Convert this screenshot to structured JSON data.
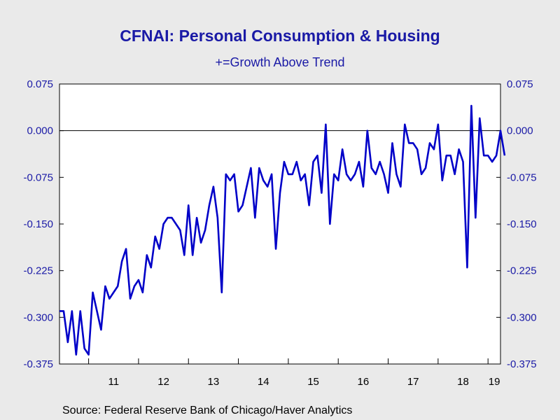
{
  "chart_data": {
    "type": "line",
    "title": "CFNAI: Personal Consumption & Housing",
    "subtitle": "+=Growth Above Trend",
    "source": "Source:  Federal Reserve Bank of Chicago/Haver Analytics",
    "xlabel": "",
    "ylabel": "",
    "ylim": [
      -0.375,
      0.075
    ],
    "xlim": [
      "2010-06",
      "2019-04"
    ],
    "y_ticks": [
      "0.075",
      "0.000",
      "-0.075",
      "-0.150",
      "-0.225",
      "-0.300",
      "-0.375"
    ],
    "y_tick_values": [
      0.075,
      0.0,
      -0.075,
      -0.15,
      -0.225,
      -0.3,
      -0.375
    ],
    "x_tick_labels": [
      "11",
      "12",
      "13",
      "14",
      "15",
      "16",
      "17",
      "18",
      "19"
    ],
    "reference_line": 0.0,
    "grid": false,
    "line_color": "#0000c8",
    "series": [
      {
        "start": "2010-06",
        "frequency": "monthly",
        "values": [
          -0.29,
          -0.29,
          -0.34,
          -0.29,
          -0.36,
          -0.29,
          -0.35,
          -0.36,
          -0.26,
          -0.29,
          -0.32,
          -0.25,
          -0.27,
          -0.26,
          -0.25,
          -0.21,
          -0.19,
          -0.27,
          -0.25,
          -0.24,
          -0.26,
          -0.2,
          -0.22,
          -0.17,
          -0.19,
          -0.15,
          -0.14,
          -0.14,
          -0.15,
          -0.16,
          -0.2,
          -0.12,
          -0.2,
          -0.14,
          -0.18,
          -0.16,
          -0.12,
          -0.09,
          -0.14,
          -0.26,
          -0.07,
          -0.08,
          -0.07,
          -0.13,
          -0.12,
          -0.09,
          -0.06,
          -0.14,
          -0.06,
          -0.08,
          -0.09,
          -0.07,
          -0.19,
          -0.1,
          -0.05,
          -0.07,
          -0.07,
          -0.05,
          -0.08,
          -0.07,
          -0.12,
          -0.05,
          -0.04,
          -0.1,
          0.01,
          -0.15,
          -0.07,
          -0.08,
          -0.03,
          -0.07,
          -0.08,
          -0.07,
          -0.05,
          -0.09,
          0.0,
          -0.06,
          -0.07,
          -0.05,
          -0.07,
          -0.1,
          -0.02,
          -0.07,
          -0.09,
          0.01,
          -0.02,
          -0.02,
          -0.03,
          -0.07,
          -0.06,
          -0.02,
          -0.03,
          0.01,
          -0.08,
          -0.04,
          -0.04,
          -0.07,
          -0.03,
          -0.05,
          -0.22,
          0.04,
          -0.14,
          0.02,
          -0.04,
          -0.04,
          -0.05,
          -0.04,
          0.0,
          -0.04
        ]
      }
    ]
  }
}
